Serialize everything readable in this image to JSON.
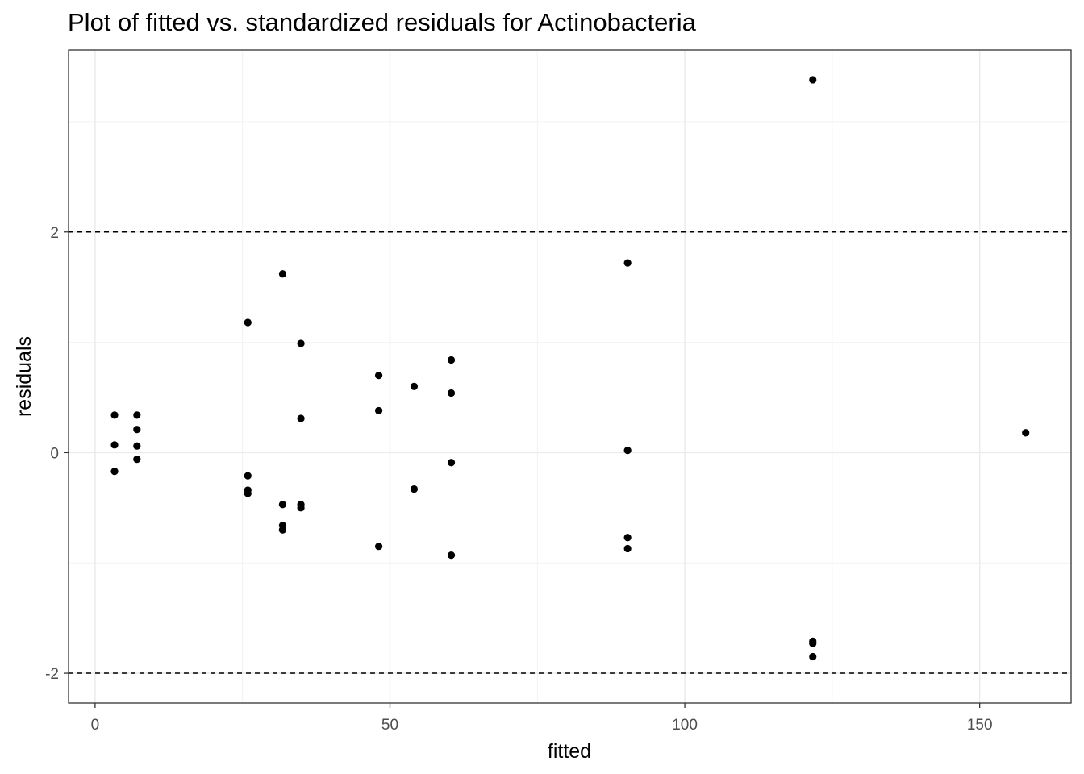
{
  "chart_data": {
    "type": "scatter",
    "title": "Plot of fitted vs. standardized residuals for Actinobacteria",
    "xlabel": "fitted",
    "ylabel": "residuals",
    "xlim": [
      -4.5,
      165.5
    ],
    "ylim": [
      -2.27,
      3.65
    ],
    "x_ticks": [
      0,
      50,
      100,
      150
    ],
    "x_tick_labels": [
      "0",
      "50",
      "100",
      "150"
    ],
    "y_ticks": [
      -2,
      0,
      2
    ],
    "y_tick_labels": [
      "-2",
      "0",
      "2"
    ],
    "x_minor_gridlines": [
      25,
      75,
      125
    ],
    "y_minor_gridlines": [
      -1,
      1,
      3
    ],
    "reference_lines": [
      {
        "y": 2,
        "style": "dashed"
      },
      {
        "y": -2,
        "style": "dashed"
      }
    ],
    "grid": true,
    "theme": "bw",
    "point_color": "#000000",
    "points": [
      {
        "x": 3.3,
        "y": 0.34
      },
      {
        "x": 3.3,
        "y": 0.07
      },
      {
        "x": 3.3,
        "y": -0.17
      },
      {
        "x": 7.1,
        "y": 0.34
      },
      {
        "x": 7.1,
        "y": 0.21
      },
      {
        "x": 7.1,
        "y": 0.06
      },
      {
        "x": 7.1,
        "y": -0.06
      },
      {
        "x": 25.9,
        "y": 1.18
      },
      {
        "x": 25.9,
        "y": -0.21
      },
      {
        "x": 25.9,
        "y": -0.34
      },
      {
        "x": 25.9,
        "y": -0.37
      },
      {
        "x": 31.8,
        "y": 1.62
      },
      {
        "x": 31.8,
        "y": -0.47
      },
      {
        "x": 31.8,
        "y": -0.66
      },
      {
        "x": 31.8,
        "y": -0.7
      },
      {
        "x": 34.9,
        "y": 0.99
      },
      {
        "x": 34.9,
        "y": 0.31
      },
      {
        "x": 34.9,
        "y": -0.47
      },
      {
        "x": 34.9,
        "y": -0.5
      },
      {
        "x": 48.1,
        "y": 0.7
      },
      {
        "x": 48.1,
        "y": 0.38
      },
      {
        "x": 48.1,
        "y": -0.85
      },
      {
        "x": 54.1,
        "y": 0.6
      },
      {
        "x": 54.1,
        "y": -0.33
      },
      {
        "x": 60.4,
        "y": 0.84
      },
      {
        "x": 60.4,
        "y": 0.54
      },
      {
        "x": 60.4,
        "y": -0.09
      },
      {
        "x": 60.4,
        "y": -0.93
      },
      {
        "x": 90.3,
        "y": 1.72
      },
      {
        "x": 90.3,
        "y": 0.02
      },
      {
        "x": 90.3,
        "y": -0.77
      },
      {
        "x": 90.3,
        "y": -0.87
      },
      {
        "x": 121.7,
        "y": 3.38
      },
      {
        "x": 121.7,
        "y": -1.71
      },
      {
        "x": 121.7,
        "y": -1.73
      },
      {
        "x": 121.7,
        "y": -1.85
      },
      {
        "x": 157.8,
        "y": 0.18
      }
    ]
  }
}
